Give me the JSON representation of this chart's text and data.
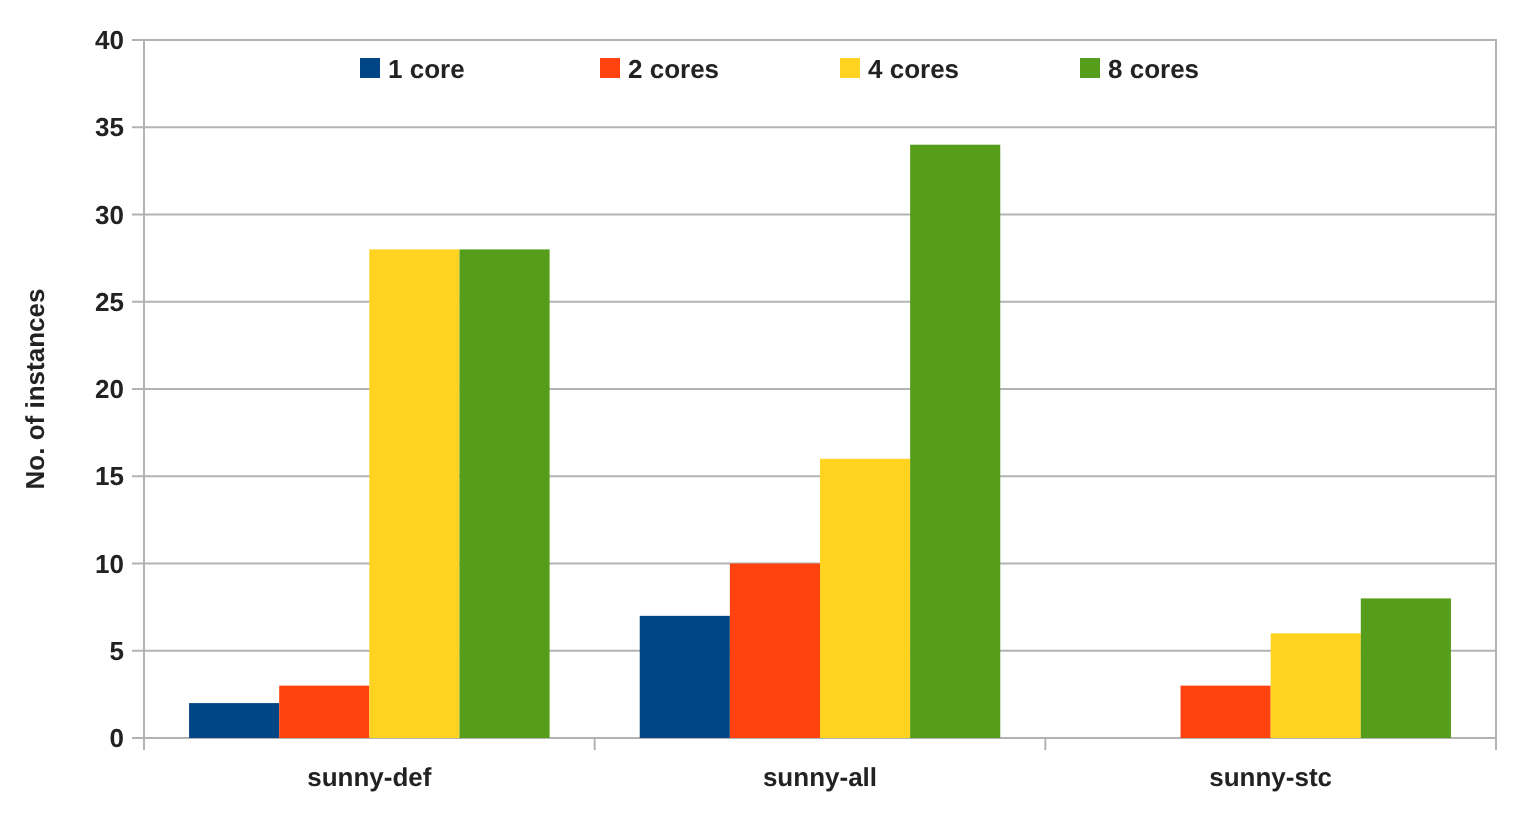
{
  "chart_data": {
    "type": "bar",
    "ylabel": "No. of instances",
    "categories": [
      "sunny-def",
      "sunny-all",
      "sunny-stc"
    ],
    "series": [
      {
        "name": "1 core",
        "color": "#004586",
        "values": [
          2,
          7,
          0
        ]
      },
      {
        "name": "2 cores",
        "color": "#ff420e",
        "values": [
          3,
          10,
          3
        ]
      },
      {
        "name": "4 cores",
        "color": "#ffd320",
        "values": [
          28,
          16,
          6
        ]
      },
      {
        "name": "8 cores",
        "color": "#579d1c",
        "values": [
          28,
          34,
          8
        ]
      }
    ],
    "ylim": [
      0,
      40
    ],
    "yticks": [
      0,
      5,
      10,
      15,
      20,
      25,
      30,
      35,
      40
    ],
    "grid": "y",
    "legend": "top"
  }
}
